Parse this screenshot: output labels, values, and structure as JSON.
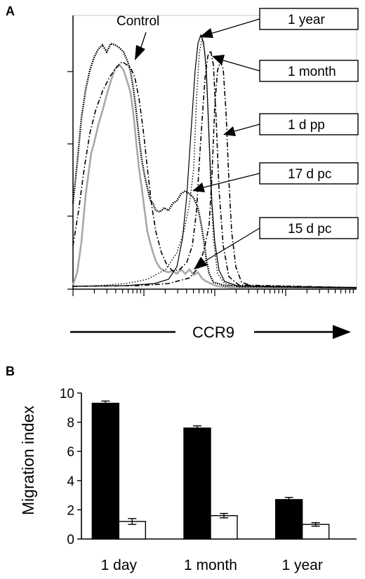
{
  "chart_data": [
    {
      "panel": "A",
      "type": "line",
      "xlabel": "CCR9",
      "ylabel": "",
      "scale": "log",
      "grid": false,
      "series": [
        {
          "name": "Control",
          "label": "Control",
          "style": "solid-gray",
          "color": "#a8a8a8"
        },
        {
          "name": "15 d pc",
          "label": "15 d pc",
          "style": "dotted",
          "color": "#000000"
        },
        {
          "name": "17 d pc",
          "label": "17 d pc",
          "style": "dense-dotted",
          "color": "#000000"
        },
        {
          "name": "1 d pp",
          "label": "1 d pp",
          "style": "dash-dot",
          "color": "#000000"
        },
        {
          "name": "1 month",
          "label": "1 month",
          "style": "dash-dot",
          "color": "#000000"
        },
        {
          "name": "1 year",
          "label": "1 year",
          "style": "solid-thin",
          "color": "#000000"
        }
      ],
      "annotations": [
        "Control",
        "1 year",
        "1 month",
        "1 d pp",
        "17 d pc",
        "15 d pc"
      ]
    },
    {
      "panel": "B",
      "type": "bar",
      "categories": [
        "1 day",
        "1 month",
        "1 year"
      ],
      "ylabel": "Migration index",
      "ylim": [
        0,
        10
      ],
      "yticks": [
        "0",
        "2",
        "4",
        "6",
        "8",
        "10"
      ],
      "series": [
        {
          "fill": "#000000",
          "values": [
            9.3,
            7.6,
            2.7
          ],
          "errors": [
            0.15,
            0.15,
            0.15
          ]
        },
        {
          "fill": "#ffffff",
          "values": [
            1.2,
            1.6,
            1.0
          ],
          "errors": [
            0.2,
            0.15,
            0.12
          ]
        }
      ]
    }
  ]
}
